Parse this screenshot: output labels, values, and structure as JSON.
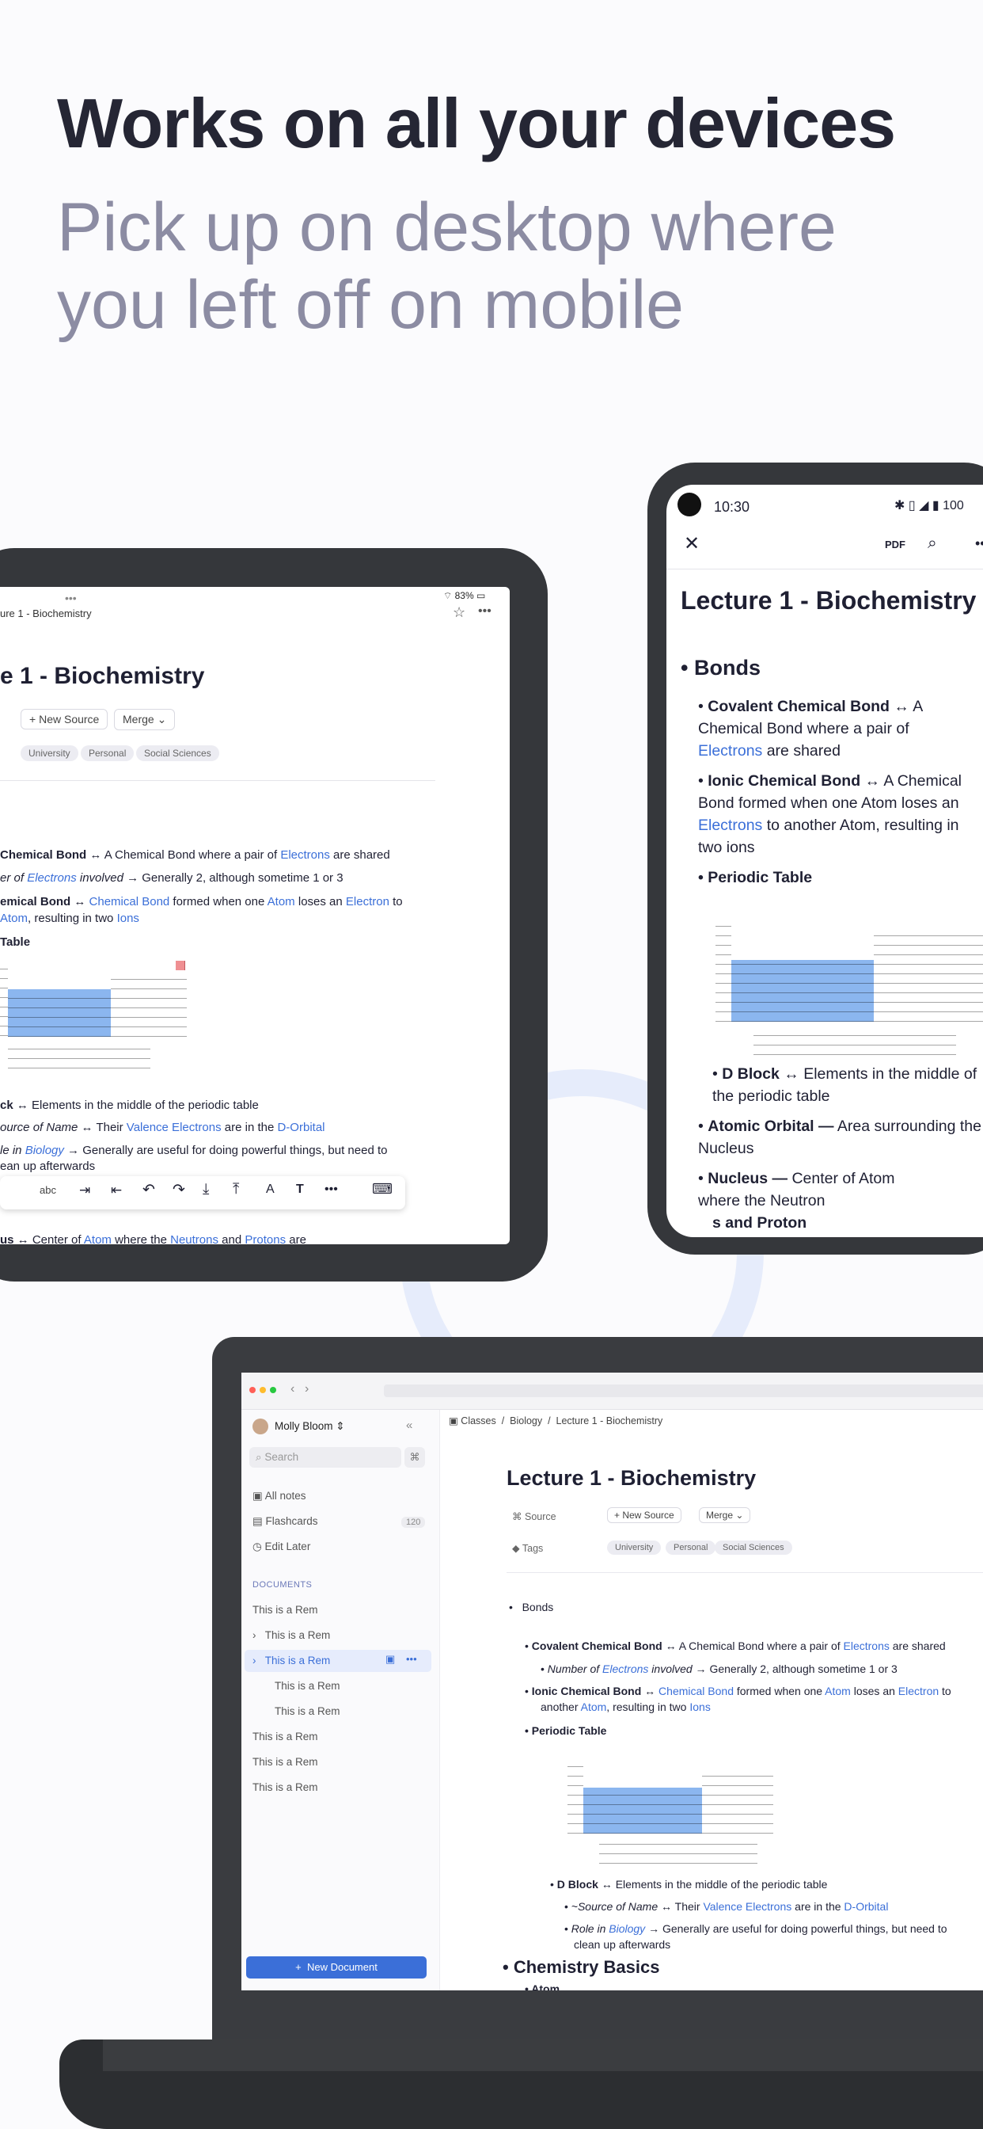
{
  "headline": "Works on all your devices",
  "subheadline": "Pick up on desktop where you left off on mobile",
  "tablet": {
    "status": "83%",
    "doc_title_bar": "ure 1 - Biochemistry",
    "title": "e 1 - Biochemistry",
    "new_source": "New Source",
    "merge": "Merge",
    "tags": [
      "University",
      "Personal",
      "Social Sciences"
    ],
    "lines": {
      "l1a": "ck",
      "l1b": "Chemical Bond",
      "l1c": " ↔ A Chemical Bond where a pair of ",
      "l1d": "Electrons",
      "l1e": " are shared",
      "l2a": "er of ",
      "l2b": "Electrons",
      "l2c": " involved",
      "l2d": " → Generally 2, although sometime 1 or 3",
      "l3a": "emical Bond",
      "l3b": " ↔ ",
      "l3c": "Chemical Bond",
      "l3d": " formed when one ",
      "l3e": "Atom",
      "l3f": " loses an ",
      "l3g": "Electron",
      "l3h": " to",
      "l4a": "Atom",
      "l4b": ", resulting in two ",
      "l4c": "Ions",
      "l5": "Table",
      "l6a": "ck",
      "l6b": " ↔ Elements in the middle of the periodic table",
      "l7a": "ource of Name",
      "l7b": " ↔ Their ",
      "l7c": "Valence Electrons",
      "l7d": " are in the ",
      "l7e": "D-Orbital",
      "l8a": "le in ",
      "l8b": "Biology",
      "l8c": " → Generally are useful for doing powerful things, but need to",
      "l9": "ean up afterwards",
      "l10a": "us",
      "l10b": " ↔ Center of ",
      "l10c": "Atom",
      "l10d": " where the ",
      "l10e": "Neutrons",
      "l10f": " and ",
      "l10g": "Protons",
      "l10h": " are"
    },
    "toolbar_abc": "abc"
  },
  "phone": {
    "time": "10:30",
    "battery": "100",
    "pdf": "PDF",
    "title": "Lecture 1 -  Biochemistry",
    "bonds": "Bonds",
    "cov_a": "Covalent Chemical Bond",
    "cov_b": " ↔ A Chemical Bond where a pair of ",
    "cov_c": "Electrons",
    "cov_d": " are shared",
    "ion_a": "Ionic Chemical Bond",
    "ion_b": " ↔ A Chemical Bond formed when one Atom loses an ",
    "ion_c": "Electrons",
    "ion_d": " to another Atom, resulting in two ions",
    "periodic": "Periodic Table",
    "dblock_a": "D Block",
    "dblock_b": " ↔ Elements in the middle of the periodic table",
    "orbital_a": "Atomic Orbital —",
    "orbital_b": " Area surrounding the Nucleus",
    "nucleus_a": "Nucleus —",
    "nucleus_b": " Center of Atom where the Neutron",
    "nucleus_c": "s and Proton"
  },
  "laptop": {
    "user": "Molly Bloom",
    "search": "Search",
    "nav": [
      {
        "label": "All notes",
        "count": ""
      },
      {
        "label": "Flashcards",
        "count": "120"
      },
      {
        "label": "Edit Later",
        "count": ""
      }
    ],
    "documents_header": "DOCUMENTS",
    "rems": [
      "This is a Rem",
      "This is a Rem",
      "This is a Rem",
      "This is a Rem",
      "This is a Rem",
      "This is a Rem",
      "This is a Rem",
      "This is a Rem"
    ],
    "new_document": "New Document",
    "breadcrumb": [
      "Classes",
      "Biology",
      "Lecture 1 - Biochemistry"
    ],
    "title": "Lecture 1 - Biochemistry",
    "source_label": "Source",
    "new_source": "New Source",
    "merge": "Merge",
    "tags_label": "Tags",
    "tags": [
      "University",
      "Personal",
      "Social Sciences"
    ],
    "bonds": "Bonds",
    "cov_a": "Covalent Chemical Bond",
    "cov_b": " ↔ A Chemical Bond where a pair of ",
    "cov_c": "Electrons",
    "cov_d": " are shared",
    "num_a": "Number of ",
    "num_b": "Electrons",
    "num_c": " involved",
    "num_d": " → Generally 2, although sometime 1 or 3",
    "ion_a": "Ionic Chemical Bond",
    "ion_b": " ↔ ",
    "ion_c": "Chemical Bond",
    "ion_d": " formed when one ",
    "ion_e": "Atom",
    "ion_f": " loses an ",
    "ion_g": "Electron",
    "ion_h": " to",
    "ion2_a": "another ",
    "ion2_b": "Atom",
    "ion2_c": ", resulting in two ",
    "ion2_d": "Ions",
    "periodic": "Periodic Table",
    "dblock_a": "D Block",
    "dblock_b": " ↔ Elements in the middle of the periodic table",
    "src_a": "~Source of Name",
    "src_b": " ↔ Their ",
    "src_c": "Valence Electrons",
    "src_d": " are in the ",
    "src_e": "D-Orbital",
    "role_a": "Role in ",
    "role_b": "Biology",
    "role_c": " → Generally are useful for doing powerful things, but need to",
    "role2": "clean up afterwards",
    "chem": "Chemistry Basics",
    "atom": "Atom"
  }
}
